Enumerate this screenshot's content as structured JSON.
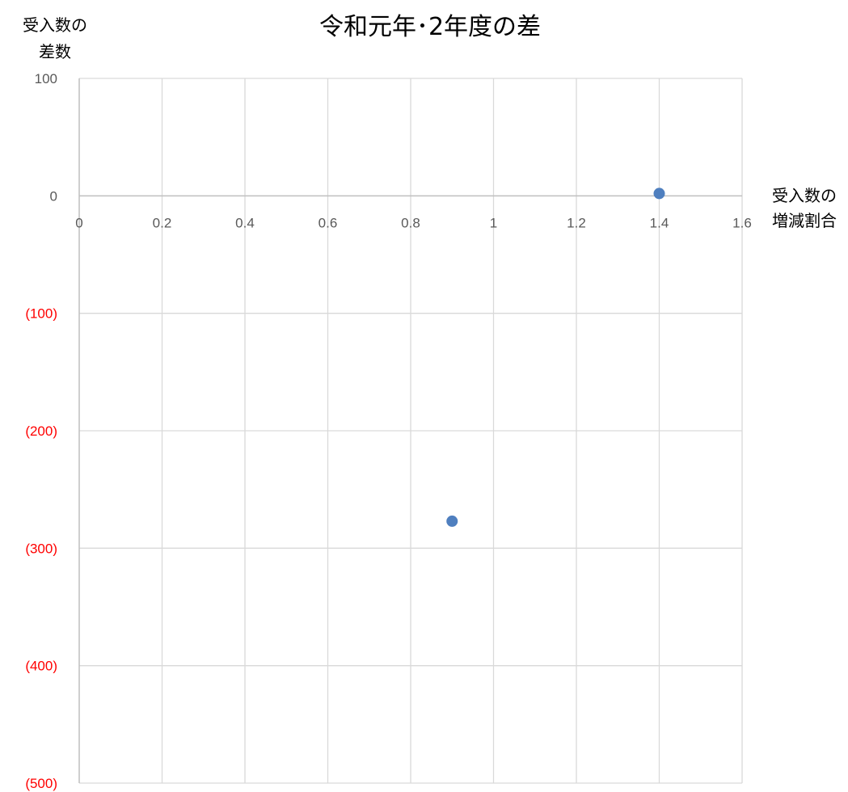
{
  "chart_data": {
    "type": "scatter",
    "title": "令和元年･2年度の差",
    "ylabel_lines": [
      "受入数の",
      "差数"
    ],
    "xlabel_lines": [
      "受入数の",
      "増減割合"
    ],
    "xlim": [
      0,
      1.6
    ],
    "ylim": [
      -500,
      100
    ],
    "x_ticks": [
      {
        "value": 0,
        "label": "0"
      },
      {
        "value": 0.2,
        "label": "0.2"
      },
      {
        "value": 0.4,
        "label": "0.4"
      },
      {
        "value": 0.6,
        "label": "0.6"
      },
      {
        "value": 0.8,
        "label": "0.8"
      },
      {
        "value": 1,
        "label": "1"
      },
      {
        "value": 1.2,
        "label": "1.2"
      },
      {
        "value": 1.4,
        "label": "1.4"
      },
      {
        "value": 1.6,
        "label": "1.6"
      }
    ],
    "y_ticks": [
      {
        "value": 100,
        "label": "100"
      },
      {
        "value": 0,
        "label": "0"
      },
      {
        "value": -100,
        "label": "(100)"
      },
      {
        "value": -200,
        "label": "(200)"
      },
      {
        "value": -300,
        "label": "(300)"
      },
      {
        "value": -400,
        "label": "(400)"
      },
      {
        "value": -500,
        "label": "(500)"
      }
    ],
    "grid": true,
    "series": [
      {
        "points": [
          {
            "x": 1.4,
            "y": 2
          },
          {
            "x": 0.9,
            "y": -277
          }
        ]
      }
    ],
    "colors": {
      "marker": "#4f7fbf",
      "grid": "#d9d9d9",
      "axis": "#bfbfbf",
      "negative_tick": "#ff0000",
      "tick": "#595959"
    }
  }
}
